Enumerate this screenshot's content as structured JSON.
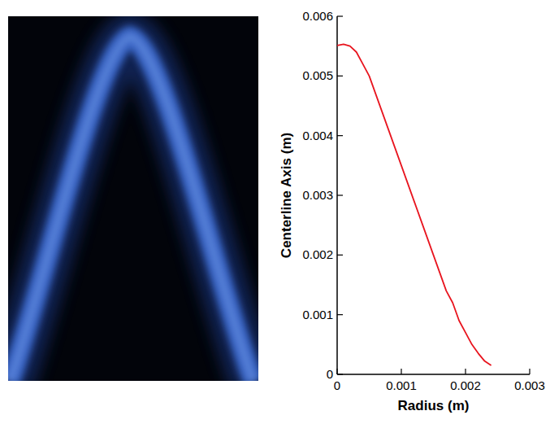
{
  "chart_data": {
    "type": "line",
    "x_label": "Radius (m)",
    "y_label": "Centerline Axis (m)",
    "x": [
      0,
      0.0001,
      0.0002,
      0.0003,
      0.0004,
      0.0005,
      0.0006,
      0.0007,
      0.0008,
      0.0009,
      0.001,
      0.0011,
      0.0012,
      0.0013,
      0.0014,
      0.0015,
      0.0016,
      0.0017,
      0.0018,
      0.0019,
      0.002,
      0.0021,
      0.0022,
      0.0023,
      0.0024
    ],
    "values": [
      0.00551,
      0.00553,
      0.0055,
      0.0054,
      0.0052,
      0.005,
      0.0047,
      0.0044,
      0.0041,
      0.0038,
      0.0035,
      0.0032,
      0.0029,
      0.0026,
      0.0023,
      0.002,
      0.0017,
      0.0014,
      0.0012,
      0.0009,
      0.0007,
      0.0005,
      0.00035,
      0.00022,
      0.00015
    ],
    "color": "#e8141e",
    "xlim": [
      0,
      0.003
    ],
    "ylim": [
      0,
      0.006
    ],
    "xticks": [
      0,
      0.001,
      0.002,
      0.003
    ],
    "yticks": [
      0,
      0.001,
      0.002,
      0.003,
      0.004,
      0.005,
      0.006
    ],
    "grid": false
  }
}
